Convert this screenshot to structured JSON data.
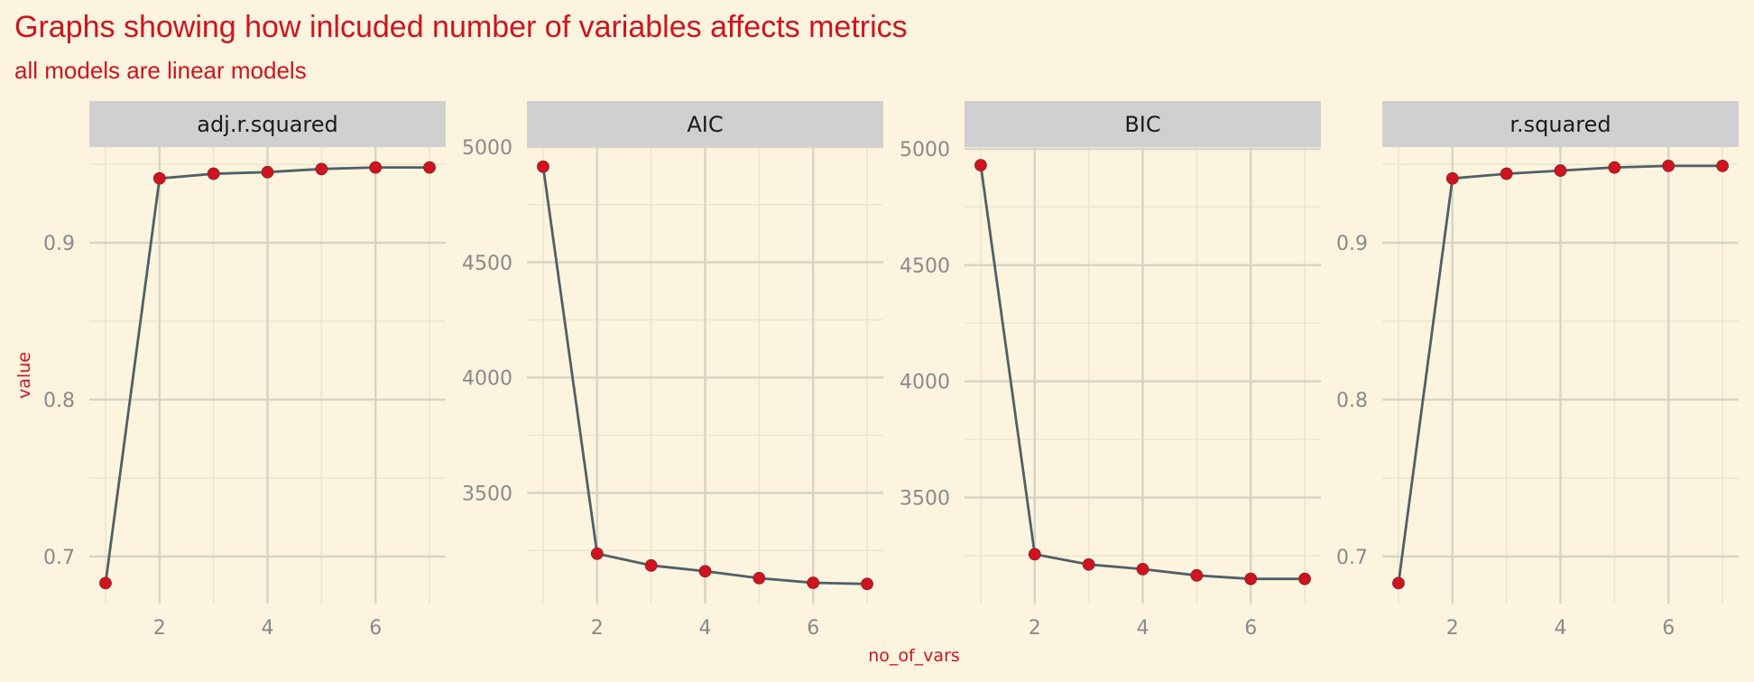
{
  "colors": {
    "background": "#fcf4de",
    "title": "#d0131f",
    "strip": "#d0d0d0",
    "grid_major": "#d9d4c6",
    "grid_minor": "#ebe4cf",
    "tick_label": "#8a8a8a",
    "line": "#4f6066",
    "point": "#d0131f",
    "strip_text": "#1a1a1a"
  },
  "chart_data": {
    "type": "line",
    "title": "Graphs showing how inlcuded number of variables affects metrics",
    "subtitle": "all models are linear models",
    "xlabel": "no_of_vars",
    "ylabel": "value",
    "grid": true,
    "legend": "none",
    "panels": [
      {
        "name": "adj.r.squared",
        "x": [
          1,
          2,
          3,
          4,
          5,
          6,
          7
        ],
        "values": [
          0.683,
          0.941,
          0.944,
          0.945,
          0.947,
          0.948,
          0.948
        ],
        "xlim": [
          0.7,
          7.3
        ],
        "xticks": [
          2,
          4,
          6
        ],
        "xtick_labels": [
          "2",
          "4",
          "6"
        ],
        "ylim": [
          0.67,
          0.961
        ],
        "yticks": [
          0.7,
          0.8,
          0.9
        ],
        "ytick_labels": [
          "0.7",
          "0.8",
          "0.9"
        ]
      },
      {
        "name": "AIC",
        "x": [
          1,
          2,
          3,
          4,
          5,
          6,
          7
        ],
        "values": [
          4915,
          3236,
          3185,
          3160,
          3130,
          3110,
          3105
        ],
        "xlim": [
          0.7,
          7.3
        ],
        "xticks": [
          2,
          4,
          6
        ],
        "xtick_labels": [
          "2",
          "4",
          "6"
        ],
        "ylim": [
          3020,
          5000
        ],
        "yticks": [
          3500,
          4000,
          4500,
          5000
        ],
        "ytick_labels": [
          "3500",
          "4000",
          "4500",
          "5000"
        ]
      },
      {
        "name": "BIC",
        "x": [
          1,
          2,
          3,
          4,
          5,
          6,
          7
        ],
        "values": [
          4930,
          3256,
          3212,
          3192,
          3165,
          3150,
          3150
        ],
        "xlim": [
          0.7,
          7.3
        ],
        "xticks": [
          2,
          4,
          6
        ],
        "xtick_labels": [
          "2",
          "4",
          "6"
        ],
        "ylim": [
          3044,
          5008
        ],
        "yticks": [
          3500,
          4000,
          4500,
          5000
        ],
        "ytick_labels": [
          "3500",
          "4000",
          "4500",
          "5000"
        ]
      },
      {
        "name": "r.squared",
        "x": [
          1,
          2,
          3,
          4,
          5,
          6,
          7
        ],
        "values": [
          0.683,
          0.941,
          0.944,
          0.946,
          0.948,
          0.949,
          0.949
        ],
        "xlim": [
          0.7,
          7.3
        ],
        "xticks": [
          2,
          4,
          6
        ],
        "xtick_labels": [
          "2",
          "4",
          "6"
        ],
        "ylim": [
          0.67,
          0.961
        ],
        "yticks": [
          0.7,
          0.8,
          0.9
        ],
        "ytick_labels": [
          "0.7",
          "0.8",
          "0.9"
        ]
      }
    ]
  }
}
